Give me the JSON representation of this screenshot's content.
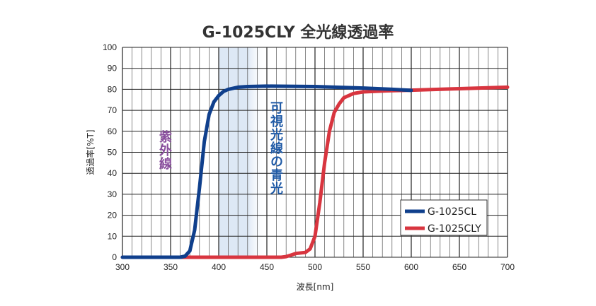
{
  "chart_data": {
    "type": "line",
    "title": "G-1025CLY 全光線透過率",
    "xlabel": "波長[nm]",
    "ylabel": "透過率[%T]",
    "xlim": [
      300,
      700
    ],
    "ylim": [
      0,
      100
    ],
    "xticks": [
      300,
      350,
      400,
      450,
      500,
      550,
      600,
      650,
      700
    ],
    "yticks": [
      0,
      10,
      20,
      30,
      40,
      50,
      60,
      70,
      80,
      90,
      100
    ],
    "grid": true,
    "legend_placement": "bottom-right",
    "annotations": [
      {
        "text": "紫外線",
        "color": "#8a4f9e",
        "x": 345,
        "y": 50
      },
      {
        "text": "可視光線の青光",
        "color": "#1f5aa6",
        "x": 452,
        "y": 50
      }
    ],
    "highlight_band": {
      "x": [
        400,
        450
      ],
      "color": "#dde8f5"
    },
    "series": [
      {
        "name": "G-1025CL",
        "color": "#0f3f8c",
        "x": [
          300,
          360,
          365,
          370,
          375,
          380,
          385,
          390,
          395,
          400,
          405,
          410,
          420,
          430,
          450,
          500,
          550,
          580,
          600
        ],
        "y": [
          0,
          0,
          0.5,
          3,
          13,
          33,
          55,
          68,
          74,
          77,
          79,
          80,
          81,
          81.3,
          81.5,
          81.3,
          80.6,
          80,
          79.5
        ]
      },
      {
        "name": "G-1025CLY",
        "color": "#d8353f",
        "x": [
          300,
          465,
          470,
          475,
          480,
          490,
          495,
          500,
          505,
          510,
          515,
          520,
          525,
          530,
          540,
          550,
          575,
          600,
          650,
          700
        ],
        "y": [
          0,
          0,
          0.3,
          1,
          1.8,
          2.3,
          4,
          10,
          26,
          45,
          60,
          69,
          73,
          76,
          78,
          78.8,
          79.3,
          79.6,
          80.3,
          81
        ]
      }
    ]
  }
}
